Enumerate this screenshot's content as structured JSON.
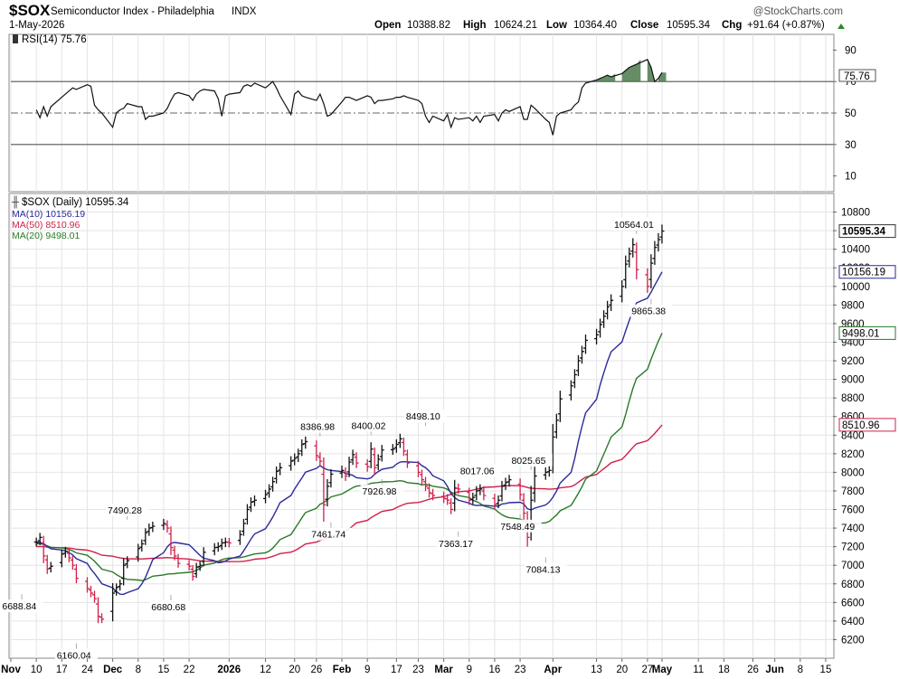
{
  "header": {
    "symbol": "$SOX",
    "name": "Semiconductor Index - Philadelphia",
    "exchange": "INDX",
    "date": "1-May-2026",
    "credit": "@StockCharts.com",
    "quote": {
      "open_label": "Open",
      "open": "10388.82",
      "high_label": "High",
      "high": "10624.21",
      "low_label": "Low",
      "low": "10364.40",
      "close_label": "Close",
      "close": "10595.34",
      "chg_label": "Chg",
      "chg": "+91.64 (+0.87%)"
    }
  },
  "rsi_panel": {
    "label": "RSI(14) 75.76",
    "value_tag": "75.76",
    "ticks": [
      90,
      70,
      50,
      30,
      10
    ],
    "ylim": [
      0,
      100
    ],
    "overbought": 70,
    "oversold": 30,
    "midline": 50,
    "values": [
      66,
      67,
      55,
      60,
      52,
      56,
      52,
      48,
      50,
      45,
      47,
      42,
      46,
      39,
      45,
      37,
      39,
      48,
      46,
      52,
      47,
      54,
      48,
      54,
      60,
      62,
      64,
      66,
      65,
      68,
      67,
      55,
      52,
      50,
      41,
      50,
      52,
      53,
      56,
      54,
      54,
      46,
      48,
      48,
      50,
      53,
      58,
      62,
      63,
      61,
      58,
      62,
      64,
      65,
      64,
      59,
      48,
      61,
      62,
      63,
      67,
      68,
      67,
      69,
      66,
      68,
      70,
      66,
      61,
      49,
      62,
      64,
      61,
      60,
      58,
      62,
      56,
      48,
      49,
      57,
      60,
      60,
      59,
      58,
      61,
      60,
      56,
      58,
      58,
      59,
      60,
      60,
      61,
      60,
      58,
      56,
      48,
      44,
      48,
      45,
      49,
      41,
      47,
      46,
      47,
      45,
      48,
      44,
      48,
      49,
      45,
      50,
      52,
      51,
      54,
      46,
      46,
      55,
      53,
      46,
      44,
      36,
      48,
      50,
      52,
      55,
      57,
      66,
      69,
      71,
      72,
      73,
      74,
      73,
      75,
      77,
      79,
      80,
      81,
      84,
      79,
      70,
      72,
      75.76
    ]
  },
  "price_panel": {
    "legend_title": "$SOX (Daily) 10595.34",
    "ylim": [
      6000,
      11000
    ],
    "ticks": [
      6200,
      6400,
      6600,
      6800,
      7000,
      7200,
      7400,
      7600,
      7800,
      8000,
      8200,
      8400,
      8600,
      8800,
      9000,
      9200,
      9400,
      9600,
      9800,
      10000,
      10200,
      10400,
      10600,
      10800
    ],
    "last_price_tag": "10595.34",
    "moving_averages": [
      {
        "name": "MA(10) 10156.19",
        "tag": "10156.19",
        "color": "#2a2a9a",
        "period": 10
      },
      {
        "name": "MA(50) 8510.96",
        "tag": "8510.96",
        "color": "#d0204a",
        "period": 50
      },
      {
        "name": "MA(20) 9498.01",
        "tag": "9498.01",
        "color": "#2a7a2a",
        "period": 20
      }
    ],
    "annotations": [
      {
        "text": "6688.84",
        "x": "2025-11-06",
        "y": 6688.84,
        "pos": "below"
      },
      {
        "text": "6160.04",
        "x": "2025-11-21",
        "y": 6160.04,
        "pos": "below"
      },
      {
        "text": "7490.28",
        "x": "2025-12-05",
        "y": 7490.28,
        "pos": "above"
      },
      {
        "text": "6680.68",
        "x": "2025-12-17",
        "y": 6680.68,
        "pos": "below"
      },
      {
        "text": "8386.98",
        "x": "2026-01-27",
        "y": 8386.98,
        "pos": "above"
      },
      {
        "text": "7461.74",
        "x": "2026-01-30",
        "y": 7461.74,
        "pos": "below"
      },
      {
        "text": "8400.02",
        "x": "2026-02-10",
        "y": 8400.02,
        "pos": "above"
      },
      {
        "text": "7926.98",
        "x": "2026-02-13",
        "y": 7926.98,
        "pos": "below"
      },
      {
        "text": "8498.10",
        "x": "2026-02-25",
        "y": 8498.1,
        "pos": "above"
      },
      {
        "text": "8017.06",
        "x": "2026-03-05",
        "y": 8017.06,
        "pos": "right"
      },
      {
        "text": "7363.17",
        "x": "2026-03-06",
        "y": 7363.17,
        "pos": "below"
      },
      {
        "text": "8025.65",
        "x": "2026-03-26",
        "y": 8025.65,
        "pos": "above"
      },
      {
        "text": "7548.49",
        "x": "2026-03-23",
        "y": 7548.49,
        "pos": "below"
      },
      {
        "text": "7084.13",
        "x": "2026-03-30",
        "y": 7084.13,
        "pos": "below"
      },
      {
        "text": "10564.01",
        "x": "2026-04-24",
        "y": 10564.01,
        "pos": "above"
      },
      {
        "text": "9865.38",
        "x": "2026-04-28",
        "y": 9865.38,
        "pos": "below"
      }
    ]
  },
  "x_axis": {
    "labels": [
      {
        "text": "Nov",
        "bold": true
      },
      {
        "text": "10"
      },
      {
        "text": "17"
      },
      {
        "text": "24"
      },
      {
        "text": "Dec",
        "bold": true
      },
      {
        "text": "8"
      },
      {
        "text": "15"
      },
      {
        "text": "22"
      },
      {
        "text": "2026",
        "bold": true
      },
      {
        "text": "12"
      },
      {
        "text": "20"
      },
      {
        "text": "26"
      },
      {
        "text": "Feb",
        "bold": true
      },
      {
        "text": "9"
      },
      {
        "text": "17"
      },
      {
        "text": "23"
      },
      {
        "text": "Mar",
        "bold": true
      },
      {
        "text": "9"
      },
      {
        "text": "16"
      },
      {
        "text": "23"
      },
      {
        "text": "Apr",
        "bold": true
      },
      {
        "text": "13"
      },
      {
        "text": "20"
      },
      {
        "text": "27"
      },
      {
        "text": "May",
        "bold": true
      },
      {
        "text": "11"
      },
      {
        "text": "18"
      },
      {
        "text": "26"
      },
      {
        "text": "Jun",
        "bold": true
      },
      {
        "text": "8"
      },
      {
        "text": "15"
      }
    ]
  },
  "chart_data": {
    "type": "line",
    "title": "$SOX (Daily) 10595.34",
    "xlabel": "",
    "ylabel": "",
    "x_start": "2025-11-03",
    "x_end": "2026-05-01",
    "ylim": [
      6000,
      11000
    ],
    "grid": true,
    "legend_placement": "top-left",
    "series": [
      {
        "name": "$SOX (Daily) 10595.34",
        "values": [
          7250,
          7300,
          7100,
          6960,
          6990,
          7120,
          7150,
          7080,
          7000,
          6860,
          6750,
          6700,
          6640,
          6450,
          6420,
          6700,
          6760,
          6800,
          7000,
          7050,
          7180,
          7230,
          7350,
          7400,
          7420,
          7450,
          7400,
          7190,
          7100,
          7020,
          6990,
          6880,
          6980,
          7000,
          7140,
          7190,
          7200,
          7240,
          7250,
          7240,
          7330,
          7450,
          7600,
          7680,
          7700,
          7760,
          7820,
          7900,
          8010,
          8050,
          8120,
          8150,
          8200,
          8300,
          8330,
          8180,
          8120,
          7650,
          7850,
          7980,
          8020,
          7960,
          8110,
          8190,
          8100,
          8060,
          8250,
          8050,
          8140,
          8240,
          8250,
          8300,
          8360,
          8230,
          8100,
          8000,
          7920,
          7850,
          7780,
          7750,
          7720,
          7700,
          7600,
          7830,
          7820,
          7700,
          7730,
          7800,
          7820,
          7750,
          7650,
          7700,
          7850,
          7890,
          7920,
          7760,
          7560,
          7300,
          7700,
          7960,
          8000,
          8020,
          8380,
          8560,
          8790,
          8930,
          9050,
          9200,
          9300,
          9420,
          9480,
          9590,
          9680,
          9780,
          9850,
          10000,
          10240,
          10350,
          10450,
          10180,
          10000,
          10250,
          10420,
          10503.7,
          10595.34
        ]
      },
      {
        "name": "MA(10) 10156.19",
        "values": [
          10156.19
        ]
      },
      {
        "name": "MA(50) 8510.96",
        "values": [
          8510.96
        ]
      },
      {
        "name": "MA(20) 9498.01",
        "values": [
          9498.01
        ]
      }
    ]
  }
}
